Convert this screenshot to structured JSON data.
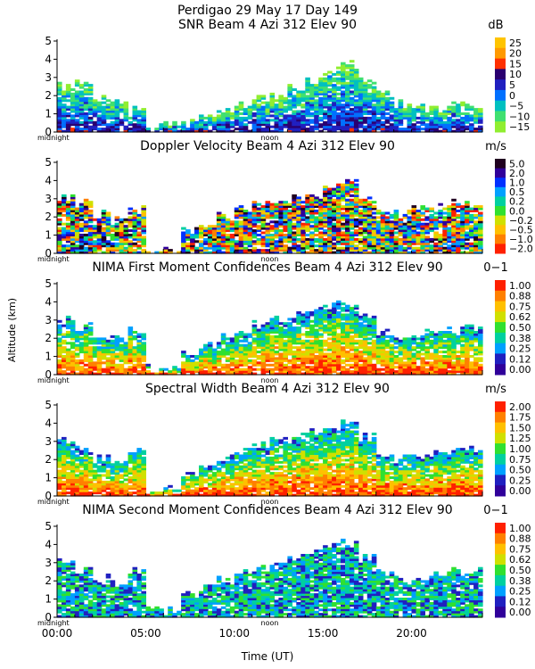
{
  "figure": {
    "title_line1": "Perdigao  29 May 17 Day 149",
    "ylabel": "Altitude (km)",
    "xlabel": "Time (UT)",
    "x_ticks": [
      "00:00",
      "05:00",
      "10:00",
      "15:00",
      "20:00"
    ],
    "x_tick_hours": [
      0,
      5,
      10,
      15,
      20
    ],
    "midnight_label": "midnight",
    "noon_label": "noon",
    "y_ticks": [
      "0",
      "1",
      "2",
      "3",
      "4",
      "5"
    ]
  },
  "chart_data": [
    {
      "type": "heatmap",
      "title": "SNR Beam 4 Azi 312 Elev 90",
      "units": "dB",
      "xlim": [
        0,
        24
      ],
      "ylim": [
        0,
        5
      ],
      "colorbar_labels": [
        "25",
        "20",
        "15",
        "10",
        "5",
        "0",
        "−5",
        "−10",
        "−15"
      ],
      "colors": [
        "#ffc400",
        "#ff9a00",
        "#ff3000",
        "#2a0070",
        "#2020c0",
        "#0070ff",
        "#00c0c0",
        "#40e070",
        "#90ee30"
      ],
      "profile": {
        "hours": [
          0.5,
          1.5,
          2.5,
          3.5,
          4.5,
          5.5,
          6.5,
          7.5,
          8.5,
          9.5,
          10.5,
          11.5,
          12.5,
          13.5,
          14.5,
          15.5,
          16.5,
          17.5,
          18.5,
          19.5,
          20.5,
          21.5,
          22.5,
          23.5
        ],
        "top_km": [
          2.5,
          2.8,
          1.8,
          1.6,
          1.3,
          0.3,
          0.4,
          0.5,
          0.7,
          1.0,
          1.4,
          1.7,
          2.0,
          2.4,
          2.8,
          3.4,
          3.7,
          2.8,
          2.0,
          1.5,
          1.3,
          1.3,
          1.5,
          1.4
        ]
      }
    },
    {
      "type": "heatmap",
      "title": "Doppler Velocity Beam 4 Azi 312 Elev 90",
      "units": "m/s",
      "xlim": [
        0,
        24
      ],
      "ylim": [
        0,
        5
      ],
      "colorbar_labels": [
        "5.0",
        "2.0",
        "1.0",
        "0.5",
        "0.2",
        "0.0",
        "−0.2",
        "−0.5",
        "−1.0",
        "−2.0"
      ],
      "colors": [
        "#200020",
        "#30009a",
        "#0030ff",
        "#00a0ff",
        "#00d0a0",
        "#30e030",
        "#d0e000",
        "#ffc000",
        "#ff8000",
        "#ff2000"
      ],
      "profile": {
        "hours": [
          0.5,
          1.5,
          2.5,
          3.5,
          4.5,
          5.5,
          6.5,
          7.5,
          8.5,
          9.5,
          10.5,
          11.5,
          12.5,
          13.5,
          14.5,
          15.5,
          16.5,
          17.5,
          18.5,
          19.5,
          20.5,
          21.5,
          22.5,
          23.5
        ],
        "top_km": [
          3.0,
          2.7,
          2.1,
          1.9,
          2.4,
          0.0,
          0.0,
          1.2,
          1.5,
          2.0,
          2.3,
          2.6,
          2.8,
          3.0,
          3.3,
          3.7,
          4.0,
          3.0,
          2.2,
          2.1,
          2.4,
          2.5,
          2.7,
          2.6
        ]
      }
    },
    {
      "type": "heatmap",
      "title": "NIMA First Moment Confidences Beam 4 Azi 312 Elev 90",
      "units": "0−1",
      "xlim": [
        0,
        24
      ],
      "ylim": [
        0,
        5
      ],
      "colorbar_labels": [
        "1.00",
        "0.88",
        "0.75",
        "0.62",
        "0.50",
        "0.38",
        "0.25",
        "0.12",
        "0.00"
      ],
      "colors": [
        "#ff2000",
        "#ff8000",
        "#ffc000",
        "#d0e000",
        "#30e030",
        "#00d0a0",
        "#00a0ff",
        "#2020c0",
        "#30009a"
      ],
      "profile": {
        "hours": [
          0.5,
          1.5,
          2.5,
          3.5,
          4.5,
          5.5,
          6.5,
          7.5,
          8.5,
          9.5,
          10.5,
          11.5,
          12.5,
          13.5,
          14.5,
          15.5,
          16.5,
          17.5,
          18.5,
          19.5,
          20.5,
          21.5,
          22.5,
          23.5
        ],
        "top_km": [
          3.0,
          2.6,
          2.1,
          1.9,
          2.4,
          0.3,
          0.3,
          1.2,
          1.6,
          2.0,
          2.4,
          2.7,
          3.0,
          3.2,
          3.5,
          3.8,
          4.0,
          3.2,
          2.3,
          2.0,
          2.2,
          2.3,
          2.5,
          2.5
        ]
      }
    },
    {
      "type": "heatmap",
      "title": "Spectral Width Beam 4 Azi 312 Elev 90",
      "units": "m/s",
      "xlim": [
        0,
        24
      ],
      "ylim": [
        0,
        5
      ],
      "colorbar_labels": [
        "2.00",
        "1.75",
        "1.50",
        "1.25",
        "1.00",
        "0.75",
        "0.50",
        "0.25",
        "0.00"
      ],
      "colors": [
        "#ff2000",
        "#ff8000",
        "#ffc000",
        "#d0e000",
        "#30e030",
        "#00d0a0",
        "#00a0ff",
        "#2020c0",
        "#30009a"
      ],
      "profile": {
        "hours": [
          0.5,
          1.5,
          2.5,
          3.5,
          4.5,
          5.5,
          6.5,
          7.5,
          8.5,
          9.5,
          10.5,
          11.5,
          12.5,
          13.5,
          14.5,
          15.5,
          16.5,
          17.5,
          18.5,
          19.5,
          20.5,
          21.5,
          22.5,
          23.5
        ],
        "top_km": [
          3.0,
          2.6,
          2.1,
          1.9,
          2.4,
          0.3,
          0.3,
          1.2,
          1.6,
          2.0,
          2.4,
          2.7,
          3.0,
          3.2,
          3.5,
          3.8,
          4.0,
          3.2,
          2.3,
          2.0,
          2.2,
          2.3,
          2.5,
          2.5
        ]
      }
    },
    {
      "type": "heatmap",
      "title": "NIMA Second Moment Confidences Beam 4 Azi 312 Elev 90",
      "units": "0−1",
      "xlim": [
        0,
        24
      ],
      "ylim": [
        0,
        5
      ],
      "colorbar_labels": [
        "1.00",
        "0.88",
        "0.75",
        "0.62",
        "0.50",
        "0.38",
        "0.25",
        "0.12",
        "0.00"
      ],
      "colors": [
        "#ff2000",
        "#ff8000",
        "#ffc000",
        "#d0e000",
        "#30e030",
        "#00d0a0",
        "#00a0ff",
        "#2020c0",
        "#30009a"
      ],
      "profile": {
        "hours": [
          0.5,
          1.5,
          2.5,
          3.5,
          4.5,
          5.5,
          6.5,
          7.5,
          8.5,
          9.5,
          10.5,
          11.5,
          12.5,
          13.5,
          14.5,
          15.5,
          16.5,
          17.5,
          18.5,
          19.5,
          20.5,
          21.5,
          22.5,
          23.5
        ],
        "top_km": [
          3.0,
          2.6,
          2.1,
          1.9,
          2.4,
          0.3,
          0.3,
          1.2,
          1.6,
          2.0,
          2.4,
          2.7,
          3.0,
          3.2,
          3.5,
          3.8,
          4.0,
          3.2,
          2.3,
          2.0,
          2.2,
          2.3,
          2.5,
          2.5
        ]
      }
    }
  ]
}
